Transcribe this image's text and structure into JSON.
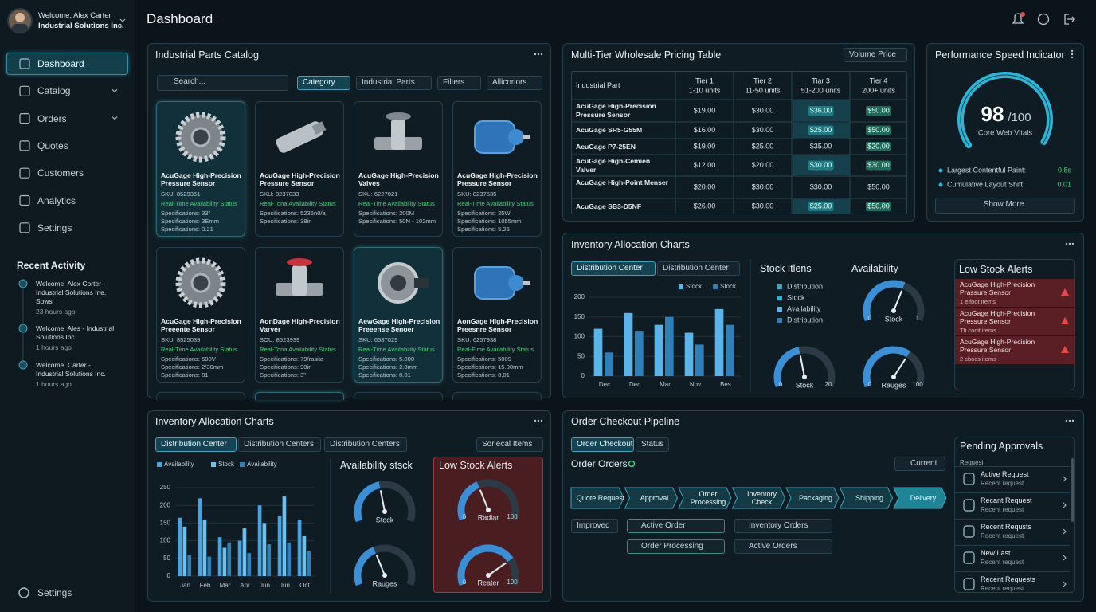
{
  "sidebar": {
    "user": {
      "greeting": "Welcome, Alex Carter",
      "company": "Industrial Solutions Inc."
    },
    "nav": [
      "Dashboard",
      "Catalog",
      "Orders",
      "Quotes",
      "Customers",
      "Analytics",
      "Settings"
    ],
    "recent_activity": {
      "title": "Recent Activity",
      "items": [
        {
          "text": "Welcome, Alex Corter - Industrial Solutions Ine. Sows",
          "time": "23 hours ago"
        },
        {
          "text": "Welcome, Ales - Industrial Solutions Inc.",
          "time": "1 hours ago"
        },
        {
          "text": "Welcome, Carter - Industrial Solutions Inc.",
          "time": "1 hours ago"
        }
      ]
    },
    "footer": "Settings"
  },
  "header": {
    "title": "Dashboard"
  },
  "catalog": {
    "title": "Industrial Parts Catalog",
    "search": "Search...",
    "filters": [
      "Category",
      "Industrial Parts",
      "Filters",
      "Allicoriors"
    ],
    "products": [
      {
        "name": "AcuGage High-Precision Pressure Sensor",
        "sku": "SKU: 8529351",
        "status": "Real-Time Availability Status",
        "specs": [
          "Specifications: 33\"",
          "Specifications: 3Emm",
          "Specifications: 0.21"
        ]
      },
      {
        "name": "AcuGage High-Precision Pressure Sensor",
        "sku": "SKU: 8237033",
        "status": "Real-Tona Availability Status",
        "specs": [
          "Specifications: 5236n0/a",
          "Specifications: 38in"
        ]
      },
      {
        "name": "AcuGage High-Precision Valves",
        "sku": "SKU: 6227021",
        "status": "Real-Time Availability Status",
        "specs": [
          "Specifications: 200M",
          "Specifications: 50N - 102mm"
        ]
      },
      {
        "name": "AcuGage High-Precision Pressure Sensor",
        "sku": "SKU: 8237535",
        "status": "Real-Time Availability Status",
        "specs": [
          "Specifications: 25W",
          "Specifications: 1055mm",
          "Specifications: 5.25"
        ]
      },
      {
        "name": "AcuGage High-Precision Preeente Sensor",
        "sku": "SKU: 8525039",
        "status": "Real-Time Availability Status",
        "specs": [
          "Specifications: 500V",
          "Specifications: 2/30mm",
          "Specifications: 81"
        ]
      },
      {
        "name": "AonDage High-Precision Varver",
        "sku": "SOU: 8523939",
        "status": "Real-Tona Availability Status",
        "specs": [
          "Specifications: 79/rasita",
          "Specifications: 90in",
          "Specifications: 3\""
        ]
      },
      {
        "name": "AewGage High-Precision Preeense Senoer",
        "sku": "SKU: 6587029",
        "status": "Real-Time Availability Status",
        "specs": [
          "Specifications: 5.000",
          "Specifications: 2.8mm",
          "Specifications: 0.01"
        ]
      },
      {
        "name": "AonGage High-Precision Preesnre Sensor",
        "sku": "SKU: 6257938",
        "status": "Real-Fime Availability Status",
        "specs": [
          "Specifications: 5009",
          "Specifications: 15.00mm",
          "Specifications: 8.01"
        ]
      }
    ]
  },
  "pricing": {
    "title": "Multi-Tier Wholesale Pricing Table",
    "dropdown": "Volume Price",
    "part_header": "Industrial Part",
    "tiers": [
      {
        "name": "Tier 1",
        "units": "1-10 units"
      },
      {
        "name": "Tier 2",
        "units": "11-50 units"
      },
      {
        "name": "Tiar 3",
        "units": "51-200 units"
      },
      {
        "name": "Tier 4",
        "units": "200+ units"
      }
    ],
    "rows": [
      [
        "AcuGage High-Precision Pressure Sensor",
        "$19.00",
        "$30.00",
        "$36.00",
        "$50.00"
      ],
      [
        "AcuGage SR5-G55M",
        "$16.00",
        "$30.00",
        "$25.00",
        "$50.00"
      ],
      [
        "AcuGage P7-25EN",
        "$19.00",
        "$25.00",
        "$35.00",
        "$20.00"
      ],
      [
        "AcuGage High-Cemien Valver",
        "$12.00",
        "$20.00",
        "$30.00",
        "$30.00"
      ],
      [
        "AcuGage High-Point Menser",
        "$20.00",
        "$30.00",
        "$30.00",
        "$50.00"
      ],
      [
        "AcuGage SB3-D5NF",
        "$26.00",
        "$30.00",
        "$25.00",
        "$50.00"
      ]
    ]
  },
  "performance": {
    "title": "Performance Speed Indicator",
    "score": 98,
    "max": {
      "value": 100,
      "label": "/100"
    },
    "label": "Core Web Vitals",
    "metrics": [
      {
        "name": "Largest Contentful Paint:",
        "value": "0.8s"
      },
      {
        "name": "Cumulative Layout Shift:",
        "value": "0.01"
      }
    ],
    "button": "Show More"
  },
  "inventory_right": {
    "title": "Inventory Allocation Charts",
    "dropdowns": [
      "Distribution Center",
      "Distribution Center"
    ],
    "chart": {
      "ylim": [
        0,
        200
      ],
      "yticks": [
        0,
        50,
        100,
        150,
        200
      ],
      "categories": [
        "Dec",
        "Dec",
        "Mar",
        "Nov",
        "Bes"
      ],
      "series": [
        {
          "name": "Stock",
          "color": "#5ab4ea",
          "values": [
            120,
            160,
            130,
            110,
            170
          ]
        },
        {
          "name": "Stock",
          "color": "#2f7fb8",
          "values": [
            60,
            115,
            150,
            80,
            130
          ]
        }
      ]
    },
    "stock_items": {
      "title": "Stock Itlens",
      "legend": [
        "Distribution",
        "Stock",
        "Availability",
        "Distribution"
      ]
    },
    "availability": {
      "title": "Availability",
      "gauges": [
        {
          "label": "Stock",
          "min": 0,
          "max": 1,
          "value": 0.6
        },
        {
          "label": "Stock",
          "min": 0,
          "max": 20,
          "value": 9
        },
        {
          "label": "Rauges",
          "min": 0,
          "max": 100,
          "value": 65
        }
      ]
    },
    "alerts": {
      "title": "Low Stock Alerts",
      "items": [
        {
          "name": "AcuGage High-Precision Prassure Sensor",
          "detail": "1 elfoot Items"
        },
        {
          "name": "AcuGage High-Precision Pressure Sensor",
          "detail": "Tfi cocit items"
        },
        {
          "name": "AcuGage High-Precision Pressure Sensor",
          "detail": "2 cbocs items"
        }
      ]
    }
  },
  "inventory_left": {
    "title": "Inventory Allocation Charts",
    "dropdowns": [
      "Distribution Center",
      "Distribution Centers",
      "Distribution Centers"
    ],
    "sort": "Sorlecal Items",
    "chart": {
      "ylim": [
        0,
        250
      ],
      "yticks": [
        0,
        50,
        100,
        150,
        200,
        250
      ],
      "categories": [
        "Jan",
        "Feb",
        "Mar",
        "Apr",
        "Jun",
        "Jun",
        "Oct"
      ],
      "series": [
        {
          "name": "Availability",
          "color": "#4aa3df",
          "values": [
            165,
            220,
            110,
            100,
            200,
            170,
            160
          ]
        },
        {
          "name": "Stock",
          "color": "#6cc0ee",
          "values": [
            140,
            160,
            80,
            135,
            150,
            225,
            115
          ]
        },
        {
          "name": "Availability",
          "color": "#2f7fb8",
          "values": [
            60,
            55,
            95,
            65,
            90,
            95,
            70
          ]
        }
      ]
    },
    "availability": {
      "title": "Availability stsck",
      "gauges": [
        {
          "label": "Stock"
        },
        {
          "label": "Rauges"
        }
      ]
    },
    "alerts": {
      "title": "Low Stock Alerts",
      "gauges": [
        {
          "label": "Radiar",
          "min": 0,
          "max": 100,
          "value": 40
        },
        {
          "label": "Reater",
          "min": 0,
          "max": 100,
          "value": 75
        }
      ]
    }
  },
  "pipeline": {
    "title": "Order Checkout Pipeline",
    "tabs": [
      "Order Checkout",
      "Status"
    ],
    "heading": "Order Orders",
    "dropdown": "Current",
    "steps": [
      "Quote Request",
      "Approval",
      "Order Processing",
      "Inventory Check",
      "Packaging",
      "Shipping",
      "Delivery"
    ],
    "badge": "Improved",
    "statuses": [
      [
        "Active Order",
        "Order Processing"
      ],
      [
        "Inventory Orders",
        "Active Orders"
      ]
    ],
    "approvals": {
      "title": "Pending Approvals",
      "subtitle": "Requesi:",
      "items": [
        {
          "title": "Active Request",
          "subtitle": "Recent request"
        },
        {
          "title": "Recant Request",
          "subtitle": "Recent request"
        },
        {
          "title": "Recent Requsts",
          "subtitle": "Recent request"
        },
        {
          "title": "New Last",
          "subtitle": "Recent request"
        },
        {
          "title": "Recent Requests",
          "subtitle": "Recent request"
        }
      ]
    }
  }
}
